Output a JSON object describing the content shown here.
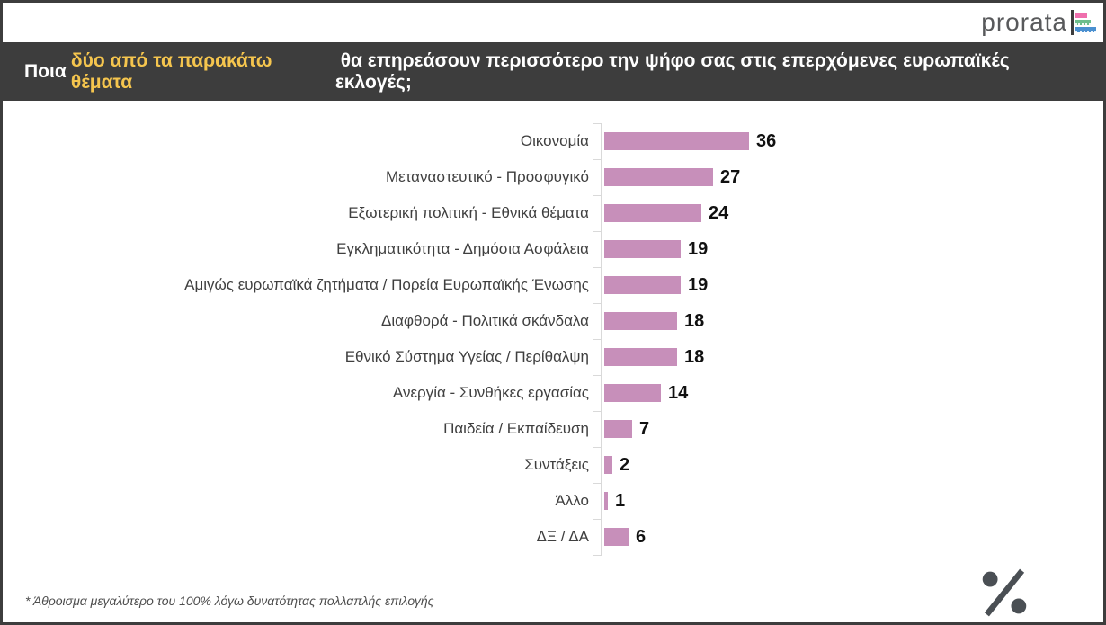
{
  "logo": {
    "text": "prorata"
  },
  "header": {
    "prefix": "Ποια ",
    "highlight": "δύο από τα παρακάτω θέματα",
    "suffix": " θα επηρεάσουν περισσότερο την ψήφο σας στις επερχόμενες ευρωπαϊκές εκλογές;",
    "background": "#3d3d3d",
    "text_color": "#ffffff",
    "highlight_color": "#f5c54e"
  },
  "chart_data": {
    "type": "bar",
    "orientation": "horizontal",
    "categories": [
      "Οικονομία",
      "Μεταναστευτικό - Προσφυγικό",
      "Εξωτερική πολιτική - Εθνικά θέματα",
      "Εγκληματικότητα - Δημόσια Ασφάλεια",
      "Αμιγώς ευρωπαϊκά ζητήματα / Πορεία Ευρωπαϊκής Ένωσης",
      "Διαφθορά - Πολιτικά σκάνδαλα",
      "Εθνικό Σύστημα Υγείας / Περίθαλψη",
      "Ανεργία - Συνθήκες εργασίας",
      "Παιδεία / Εκπαίδευση",
      "Συντάξεις",
      "Άλλο",
      "ΔΞ / ΔΑ"
    ],
    "values": [
      36,
      27,
      24,
      19,
      19,
      18,
      18,
      14,
      7,
      2,
      1,
      6
    ],
    "unit": "%",
    "title": "",
    "xlabel": "",
    "ylabel": "",
    "xlim": [
      0,
      40
    ],
    "grid": false,
    "legend": false,
    "value_labels_shown": true,
    "bar_color": "#c78fba",
    "axis_color": "#d9d9d9"
  },
  "footnote": "* Άθροισμα μεγαλύτερο του 100% λόγω δυνατότητας πολλαπλής επιλογής",
  "percent_symbol": "%",
  "colors": {
    "frame": "#3d3d3d",
    "percent_mark": "#4a4f54",
    "logo_pink": "#ef6fad",
    "logo_green": "#6cbe8c",
    "logo_blue": "#4a90d0"
  }
}
